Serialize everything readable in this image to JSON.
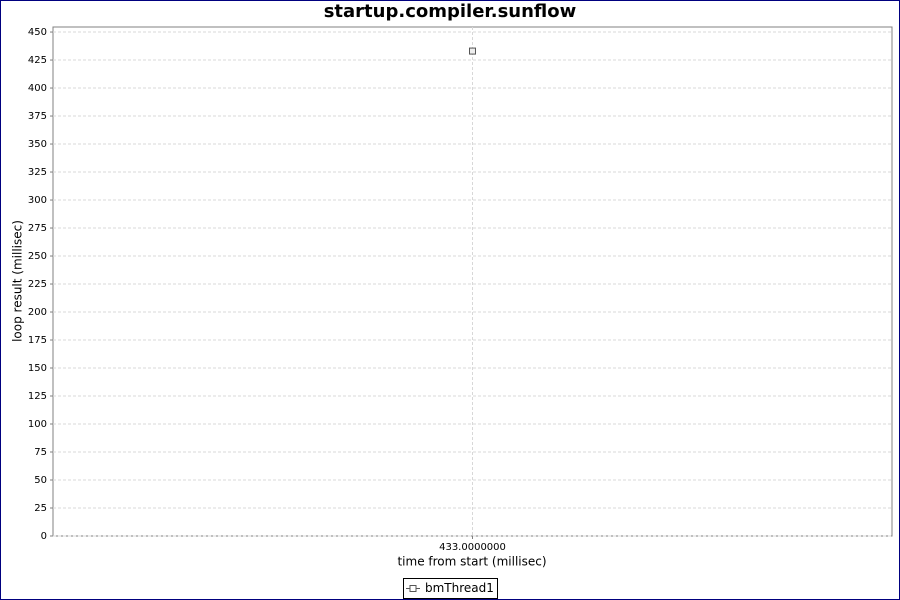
{
  "chart_data": {
    "type": "scatter",
    "title": "startup.compiler.sunflow",
    "x_label": "time from start (millisec)",
    "y_label": "loop result (millisec)",
    "x": [
      433
    ],
    "series": [
      {
        "name": "bmThread1",
        "color": "#555555",
        "values": [
          433
        ]
      }
    ],
    "xlim": [
      432,
      434
    ],
    "xticks": [
      {
        "value": 433,
        "label": "433.0000000"
      }
    ],
    "ylim": [
      0,
      454.5
    ],
    "yticks": [
      0,
      25,
      50,
      75,
      100,
      125,
      150,
      175,
      200,
      225,
      250,
      275,
      300,
      325,
      350,
      375,
      400,
      425,
      450
    ],
    "grid": true,
    "legend": "bottom"
  }
}
